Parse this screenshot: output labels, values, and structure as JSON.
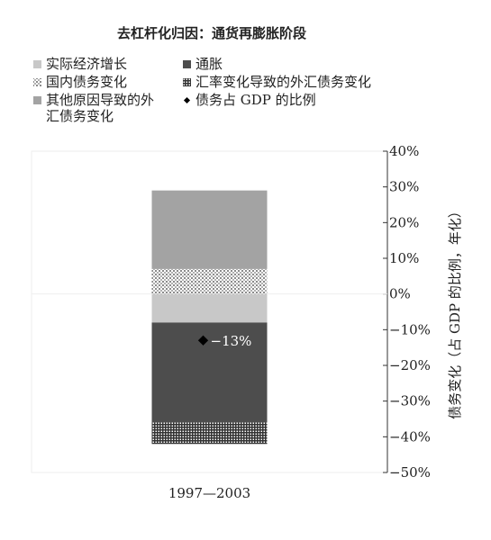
{
  "chart_data": {
    "type": "stacked_bar",
    "title": "去杠杆化归因：通货再膨胀阶段",
    "categories": [
      "1997—2003"
    ],
    "series": [
      {
        "name": "实际经济增长",
        "color": "#c8c8c8",
        "values": [
          -8
        ]
      },
      {
        "name": "通胀",
        "color": "#4d4d4d",
        "values": [
          -28
        ]
      },
      {
        "name": "国内债务变化",
        "color": "#9a9a9a",
        "pattern": "dots",
        "values": [
          7
        ]
      },
      {
        "name": "汇率变化导致的外汇债务变化",
        "color": "#333333",
        "pattern": "grid",
        "values": [
          -6
        ]
      },
      {
        "name": "其他原因导致的外汇债务变化",
        "color": "#a3a3a3",
        "values": [
          22
        ]
      }
    ],
    "points": {
      "name": "债务占 GDP 的比例",
      "color": "#000000",
      "values": [
        -13
      ],
      "value_labels": [
        "−13%"
      ]
    },
    "y_label": "债务变化（占 GDP 的比例，年化）",
    "ylim": [
      -50,
      40
    ],
    "yticks": [
      {
        "value": 40,
        "label": "40%"
      },
      {
        "value": 30,
        "label": "30%"
      },
      {
        "value": 20,
        "label": "20%"
      },
      {
        "value": 10,
        "label": "10%"
      },
      {
        "value": 0,
        "label": "0%"
      },
      {
        "value": -10,
        "label": "−10%"
      },
      {
        "value": -20,
        "label": "−20%"
      },
      {
        "value": -30,
        "label": "−30%"
      },
      {
        "value": -40,
        "label": "−40%"
      },
      {
        "value": -50,
        "label": "−50%"
      }
    ],
    "y_axis_side": "right"
  }
}
